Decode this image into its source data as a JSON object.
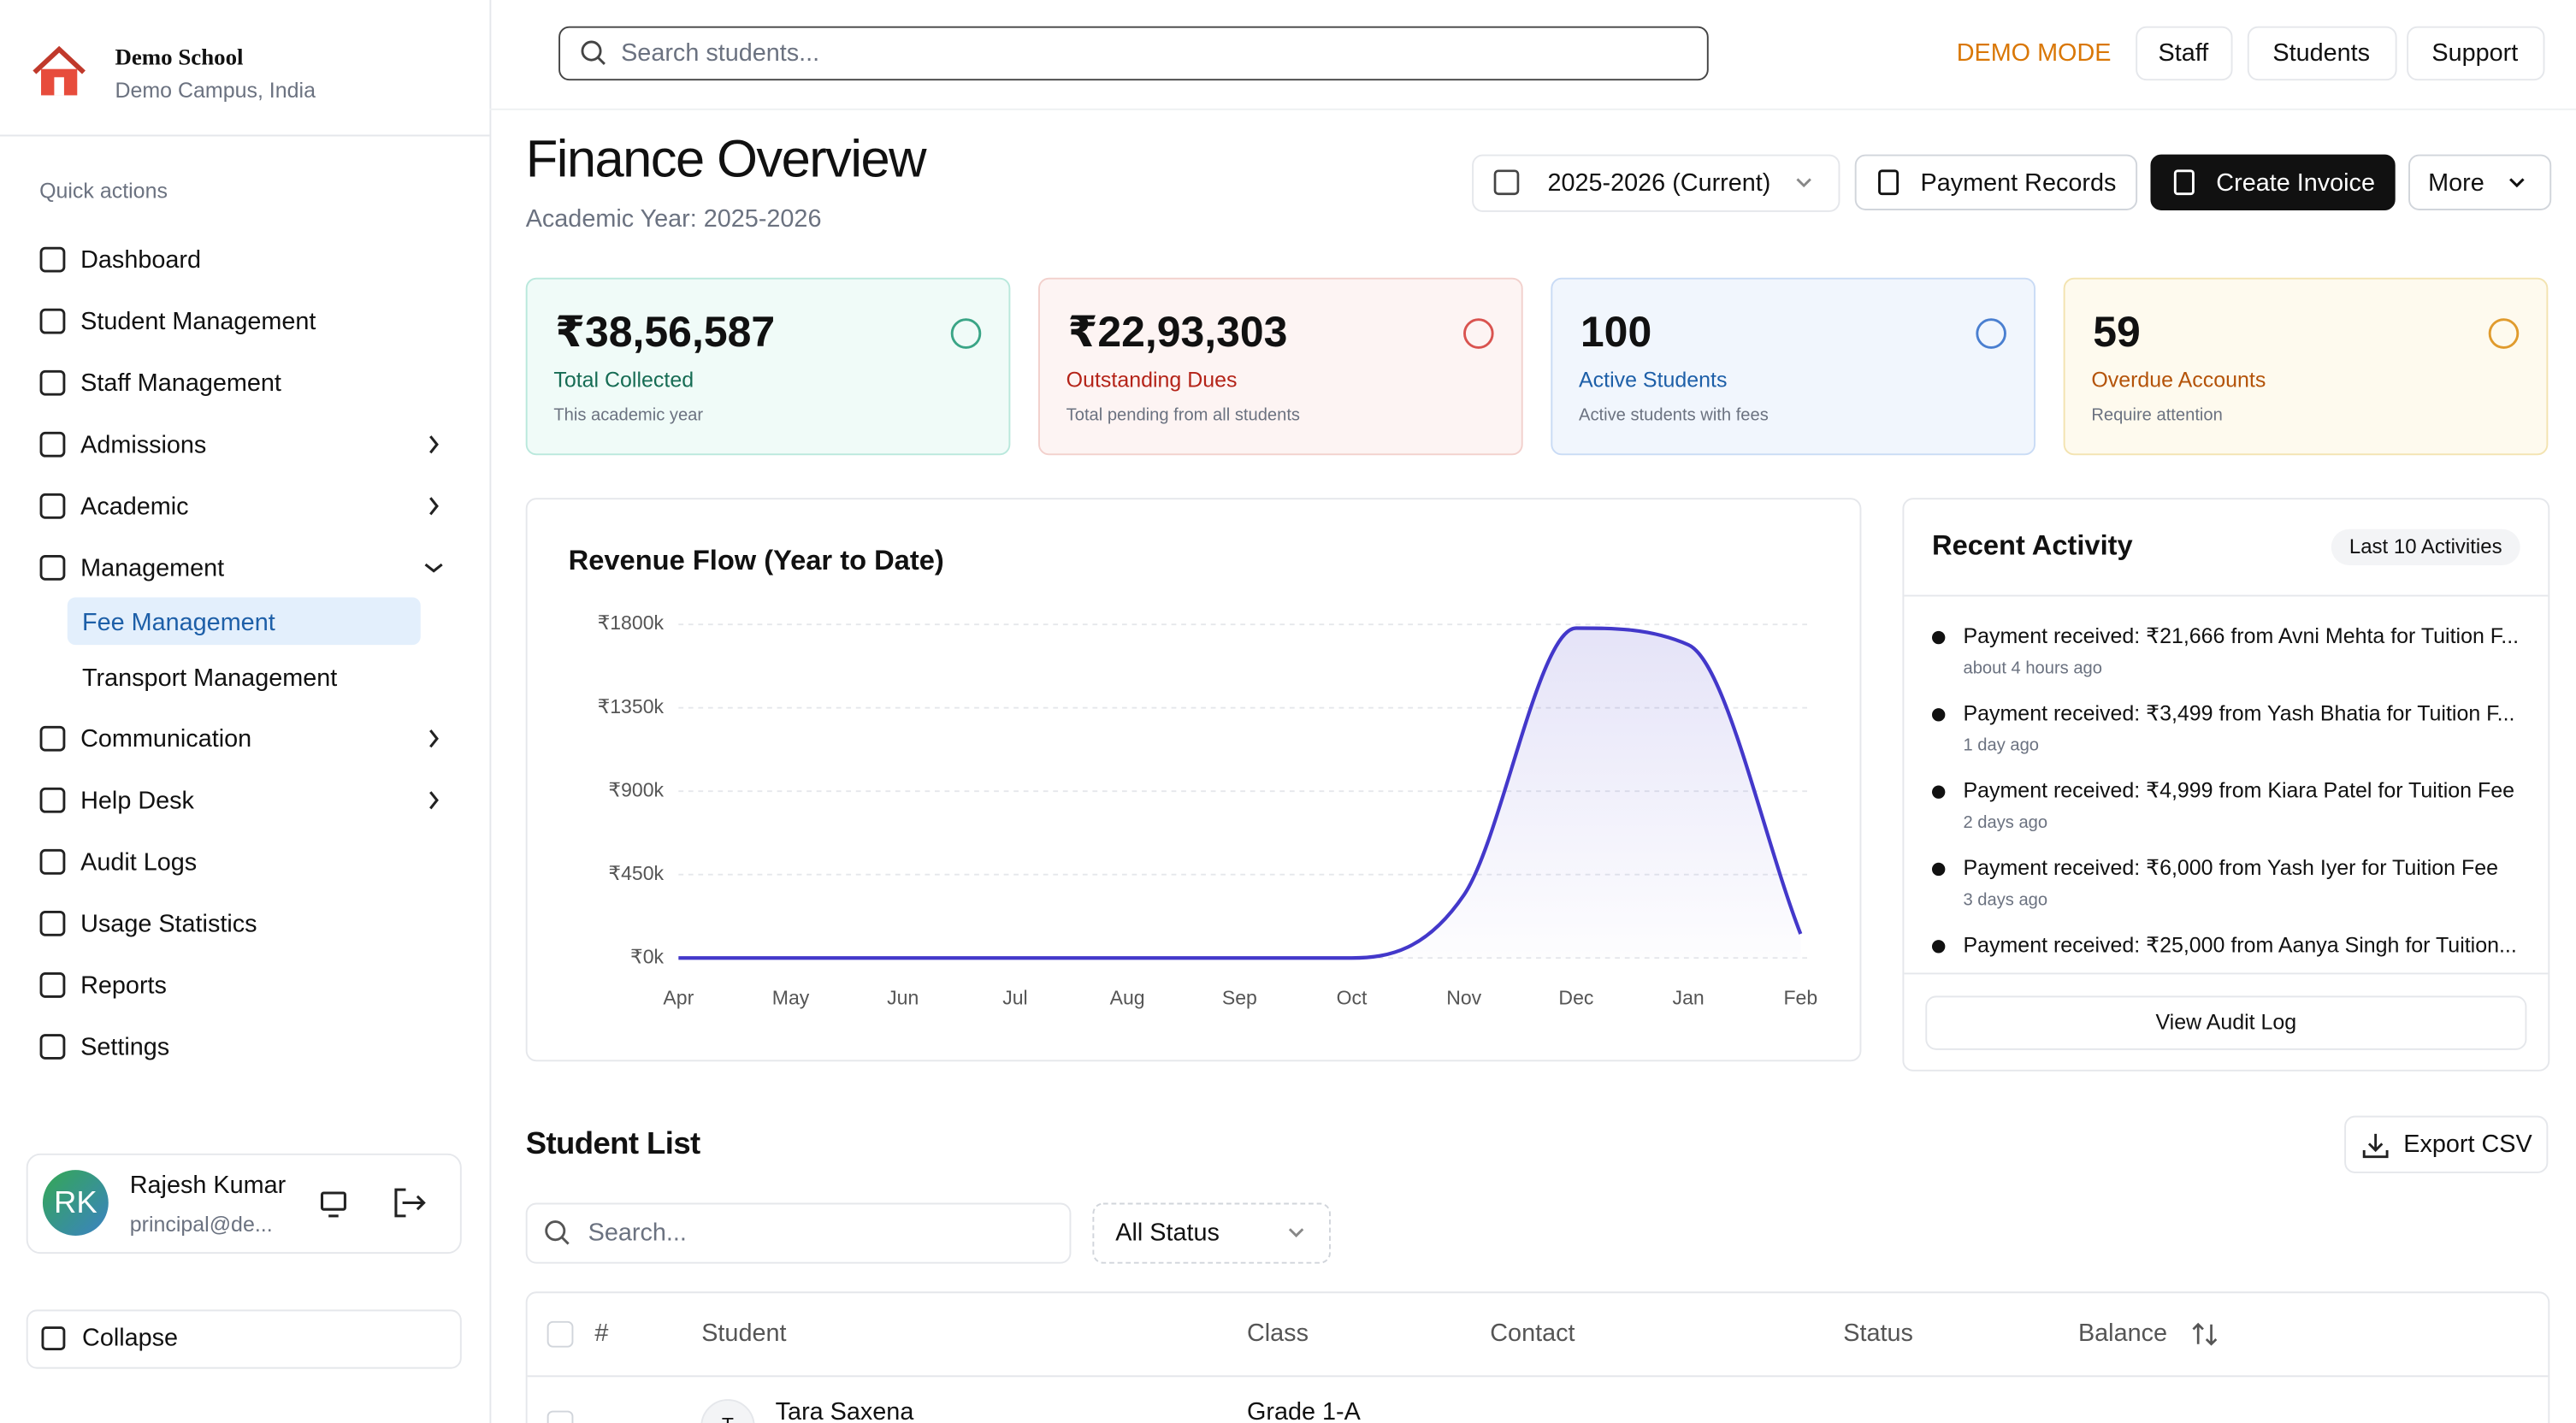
{
  "school": {
    "name": "Demo School",
    "location": "Demo Campus, India"
  },
  "sidebar": {
    "section_title": "Quick actions",
    "items": [
      {
        "label": "Dashboard"
      },
      {
        "label": "Student Management"
      },
      {
        "label": "Staff Management"
      },
      {
        "label": "Admissions"
      },
      {
        "label": "Academic"
      },
      {
        "label": "Management",
        "sub_items": [
          "Fee Management",
          "Transport Management"
        ]
      },
      {
        "label": "Communication"
      },
      {
        "label": "Help Desk"
      },
      {
        "label": "Audit Logs"
      },
      {
        "label": "Usage Statistics"
      },
      {
        "label": "Reports"
      },
      {
        "label": "Settings"
      }
    ],
    "user": {
      "initials": "RK",
      "name": "Rajesh Kumar",
      "email": "principal@de..."
    },
    "collapse": "Collapse"
  },
  "topbar": {
    "search_placeholder": "Search students...",
    "mode": "DEMO MODE",
    "links": [
      "Staff",
      "Students",
      "Support"
    ]
  },
  "header": {
    "title": "Finance Overview",
    "subtitle": "Academic Year: 2025-2026",
    "year_select": "2025-2026 (Current)",
    "buttons": [
      "Payment Records",
      "Create Invoice",
      "More"
    ]
  },
  "stats": [
    {
      "value": "₹38,56,587",
      "label": "Total Collected",
      "note": "This academic year"
    },
    {
      "value": "₹22,93,303",
      "label": "Outstanding Dues",
      "note": "Total pending from all students"
    },
    {
      "value": "100",
      "label": "Active Students",
      "note": "Active students with fees"
    },
    {
      "value": "59",
      "label": "Overdue Accounts",
      "note": "Require attention"
    }
  ],
  "chart_data": {
    "type": "line",
    "title": "Revenue Flow (Year to Date)",
    "categories": [
      "Apr",
      "May",
      "Jun",
      "Jul",
      "Aug",
      "Sep",
      "Oct",
      "Nov",
      "Dec",
      "Jan",
      "Feb"
    ],
    "values": [
      0,
      0,
      0,
      0,
      0,
      0,
      0,
      340000,
      1780000,
      1690000,
      130000
    ],
    "color": "#4338ca",
    "ylim": [
      0,
      1800000
    ],
    "yticks": [
      {
        "value": 0,
        "label": "₹0k"
      },
      {
        "value": 450000,
        "label": "₹450k"
      },
      {
        "value": 900000,
        "label": "₹900k"
      },
      {
        "value": 1350000,
        "label": "₹1350k"
      },
      {
        "value": 1800000,
        "label": "₹1800k"
      }
    ],
    "grid": true
  },
  "activity": {
    "title": "Recent Activity",
    "badge": "Last 10 Activities",
    "items": [
      {
        "text": "Payment received: ₹21,666 from Avni Mehta for Tuition F...",
        "time": "about 4 hours ago"
      },
      {
        "text": "Payment received: ₹3,499 from Yash Bhatia for Tuition F...",
        "time": "1 day ago"
      },
      {
        "text": "Payment received: ₹4,999 from Kiara Patel for Tuition Fee",
        "time": "2 days ago"
      },
      {
        "text": "Payment received: ₹6,000 from Yash Iyer for Tuition Fee",
        "time": "3 days ago"
      },
      {
        "text": "Payment received: ₹25,000 from Aanya Singh for Tuition..."
      }
    ],
    "button": "View Audit Log"
  },
  "student_list": {
    "title": "Student List",
    "export": "Export CSV",
    "search_placeholder": "Search...",
    "filter": "All Status",
    "columns": [
      "#",
      "Student",
      "Class",
      "Contact",
      "Status",
      "Balance"
    ],
    "rows": [
      {
        "initial": "T",
        "student": "Tara Saxena",
        "class": "Grade 1-A"
      }
    ]
  }
}
